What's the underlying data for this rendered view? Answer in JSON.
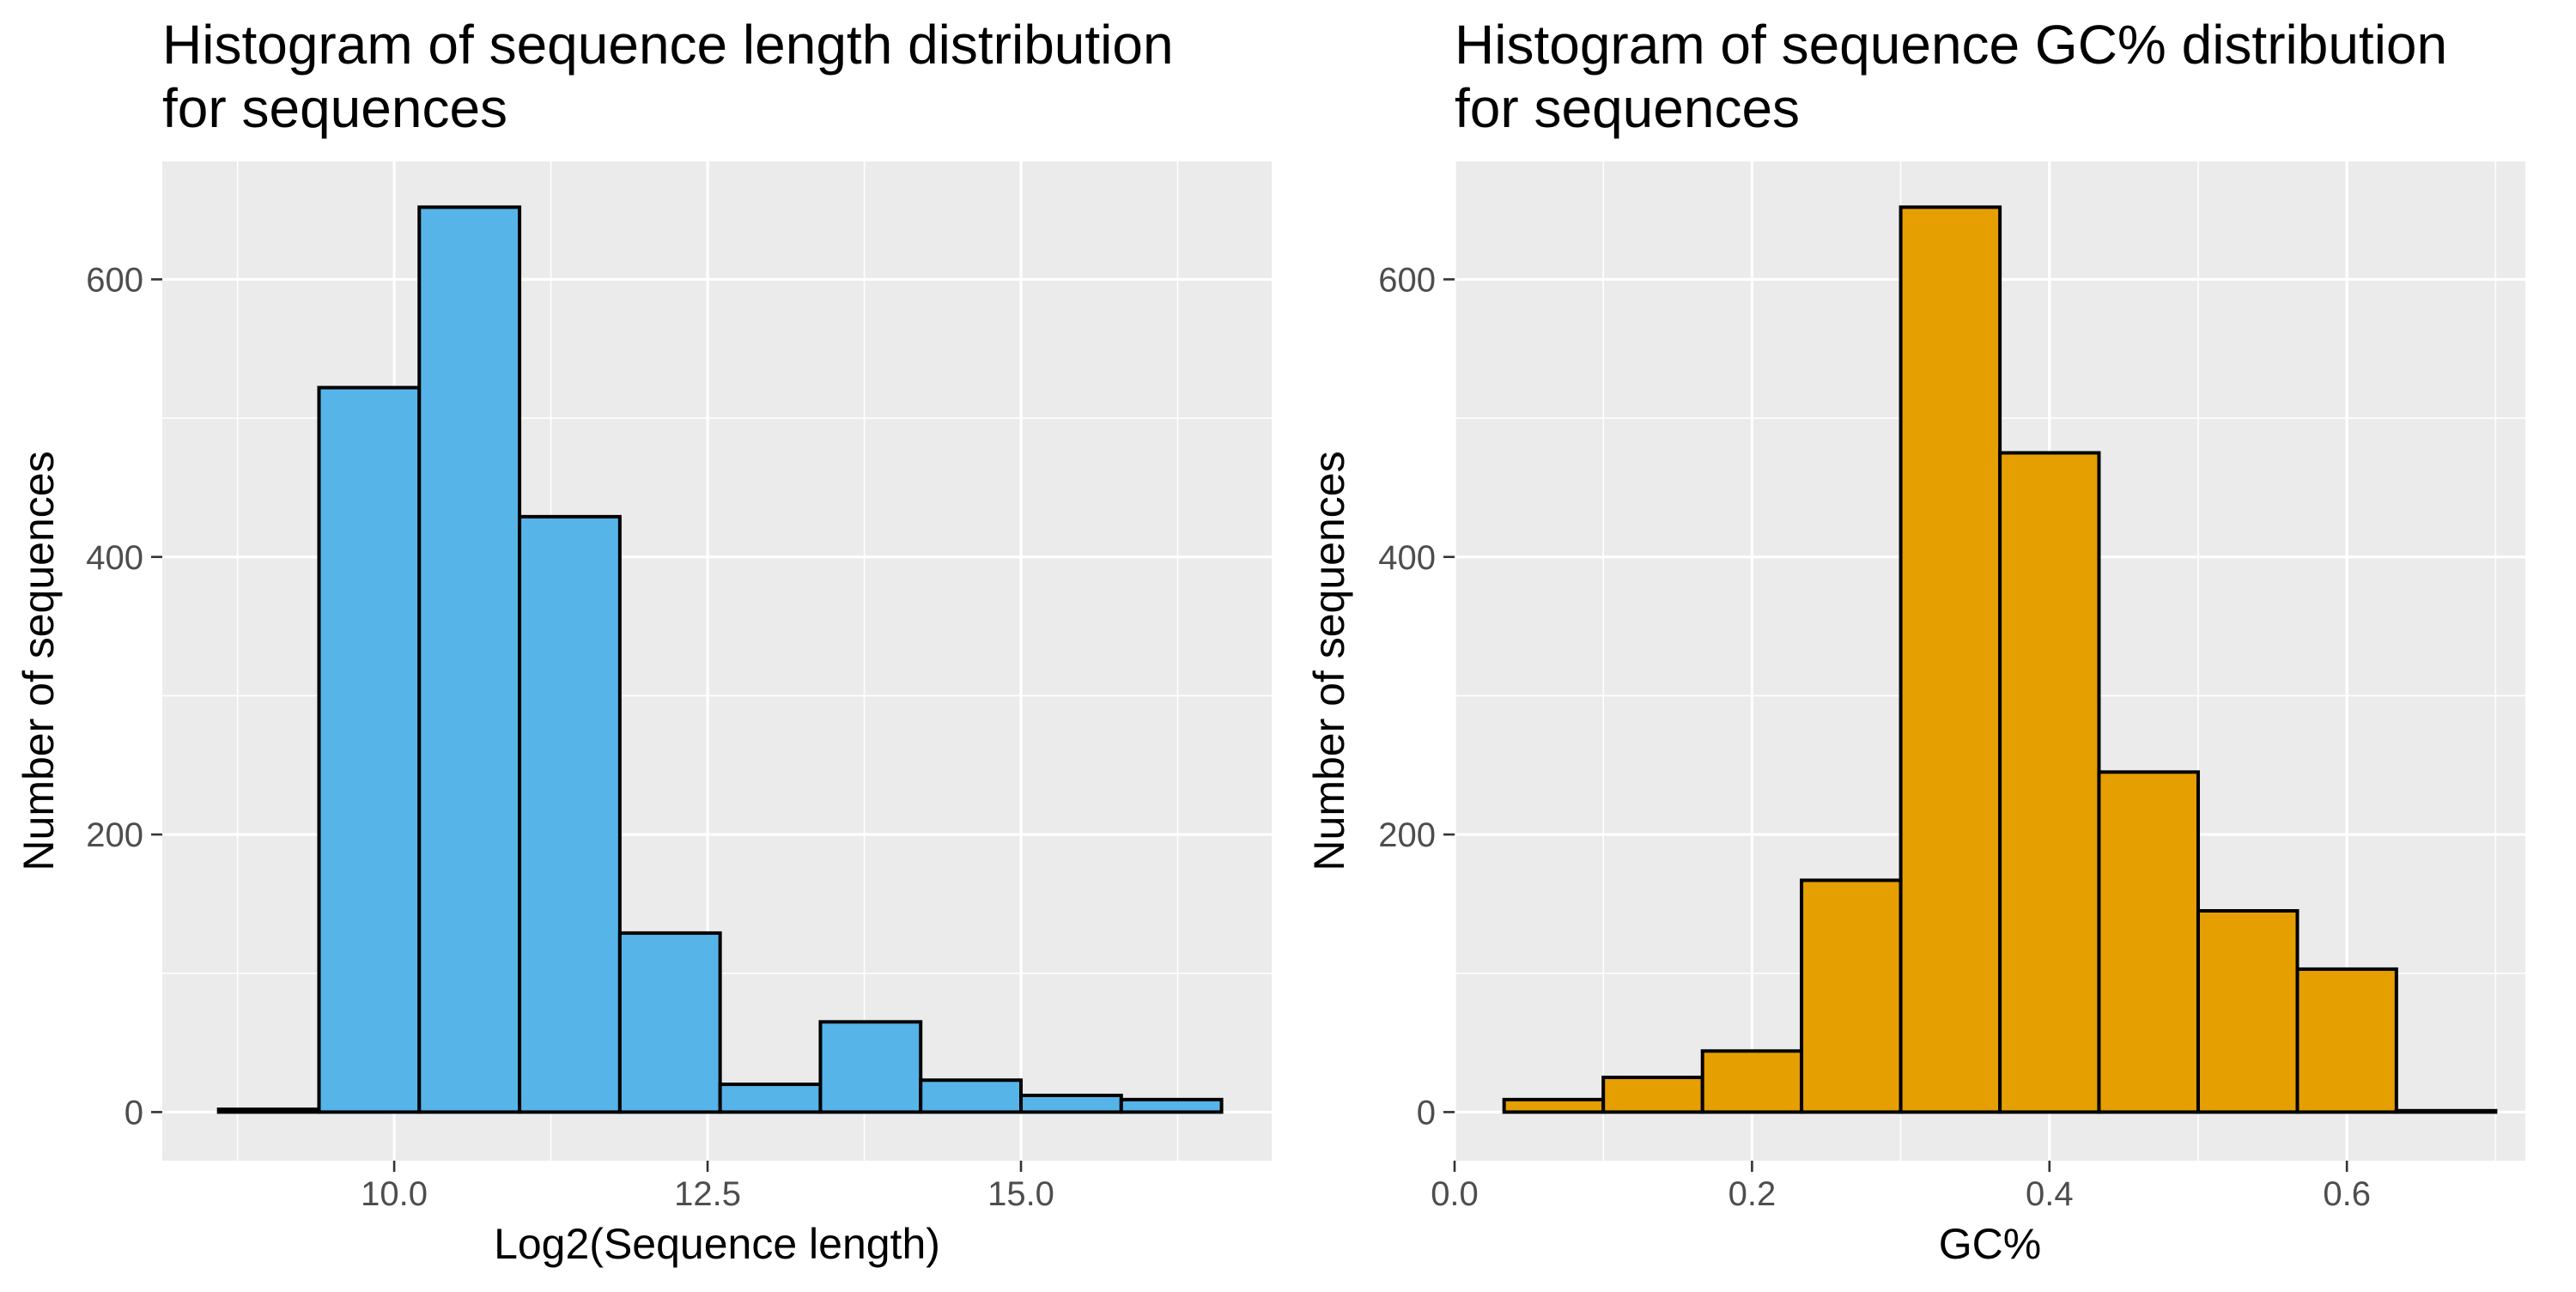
{
  "chart_data": [
    {
      "type": "bar",
      "title_lines": [
        "Histogram of sequence length distribution",
        "for sequences"
      ],
      "xlabel": "Log2(Sequence length)",
      "ylabel": "Number of sequences",
      "fill_color": "#56B4E9",
      "xlim": [
        8.15,
        17.0
      ],
      "ylim": [
        -35,
        685
      ],
      "x_major_ticks": [
        {
          "value": 10.0,
          "label": "10.0"
        },
        {
          "value": 12.5,
          "label": "12.5"
        },
        {
          "value": 15.0,
          "label": "15.0"
        }
      ],
      "x_minor_ticks": [
        8.75,
        11.25,
        13.75,
        16.25
      ],
      "y_major_ticks": [
        {
          "value": 0,
          "label": "0"
        },
        {
          "value": 200,
          "label": "200"
        },
        {
          "value": 400,
          "label": "400"
        },
        {
          "value": 600,
          "label": "600"
        }
      ],
      "y_minor_ticks": [
        100,
        300,
        500
      ],
      "grid": true,
      "bins": [
        {
          "x0": 8.6,
          "x1": 9.4,
          "count": 2
        },
        {
          "x0": 9.4,
          "x1": 10.2,
          "count": 522
        },
        {
          "x0": 10.2,
          "x1": 11.0,
          "count": 652
        },
        {
          "x0": 11.0,
          "x1": 11.8,
          "count": 429
        },
        {
          "x0": 11.8,
          "x1": 12.6,
          "count": 129
        },
        {
          "x0": 12.6,
          "x1": 13.4,
          "count": 20
        },
        {
          "x0": 13.4,
          "x1": 14.2,
          "count": 65
        },
        {
          "x0": 14.2,
          "x1": 15.0,
          "count": 23
        },
        {
          "x0": 15.0,
          "x1": 15.8,
          "count": 12
        },
        {
          "x0": 15.8,
          "x1": 16.6,
          "count": 9
        }
      ]
    },
    {
      "type": "bar",
      "title_lines": [
        "Histogram of sequence GC% distribution",
        "for sequences"
      ],
      "xlabel": "GC%",
      "ylabel": "Number of sequences",
      "fill_color": "#E69F00",
      "xlim": [
        0.0,
        0.72
      ],
      "ylim": [
        -35,
        685
      ],
      "x_major_ticks": [
        {
          "value": 0.0,
          "label": "0.0"
        },
        {
          "value": 0.2,
          "label": "0.2"
        },
        {
          "value": 0.4,
          "label": "0.4"
        },
        {
          "value": 0.6,
          "label": "0.6"
        }
      ],
      "x_minor_ticks": [
        0.1,
        0.3,
        0.5,
        0.7
      ],
      "y_major_ticks": [
        {
          "value": 0,
          "label": "0"
        },
        {
          "value": 200,
          "label": "200"
        },
        {
          "value": 400,
          "label": "400"
        },
        {
          "value": 600,
          "label": "600"
        }
      ],
      "y_minor_ticks": [
        100,
        300,
        500
      ],
      "grid": true,
      "bins": [
        {
          "x0": 0.0333,
          "x1": 0.1,
          "count": 9
        },
        {
          "x0": 0.1,
          "x1": 0.1667,
          "count": 25
        },
        {
          "x0": 0.1667,
          "x1": 0.2333,
          "count": 44
        },
        {
          "x0": 0.2333,
          "x1": 0.3,
          "count": 167
        },
        {
          "x0": 0.3,
          "x1": 0.3667,
          "count": 652
        },
        {
          "x0": 0.3667,
          "x1": 0.4333,
          "count": 475
        },
        {
          "x0": 0.4333,
          "x1": 0.5,
          "count": 245
        },
        {
          "x0": 0.5,
          "x1": 0.5667,
          "count": 145
        },
        {
          "x0": 0.5667,
          "x1": 0.6333,
          "count": 103
        },
        {
          "x0": 0.6333,
          "x1": 0.7,
          "count": 1
        }
      ]
    }
  ]
}
